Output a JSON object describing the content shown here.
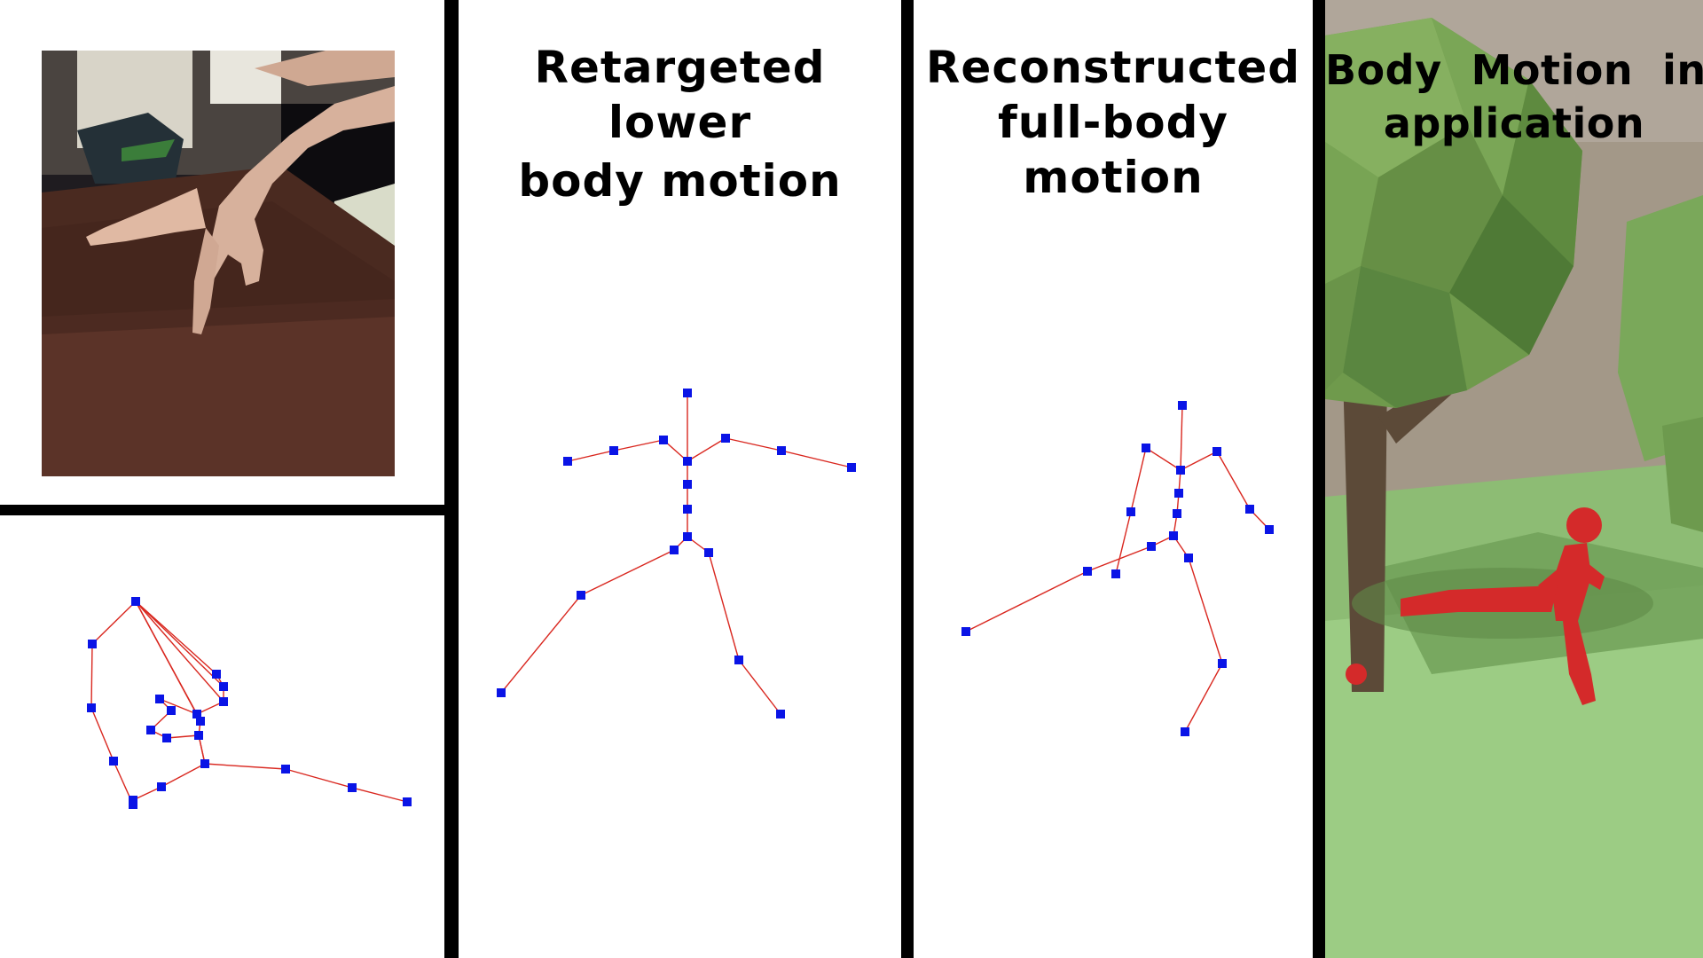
{
  "panels": {
    "input": {
      "hand_photo_alt": "hand-photo"
    },
    "lower_body": {
      "title_line1": "Retargeted lower",
      "title_line2": "body motion"
    },
    "full_body": {
      "title_line1": "Reconstructed",
      "title_line2": "full-body motion"
    },
    "application": {
      "title_line1": "Body  Motion  in",
      "title_line2": "application"
    }
  },
  "colors": {
    "joint": "#0a14e6",
    "bone": "#d9271f",
    "separator": "#000000",
    "character": "#d42a2a",
    "foliage": "#6f9a4c",
    "ground": "#93c27a",
    "sky": "#a89c90"
  }
}
